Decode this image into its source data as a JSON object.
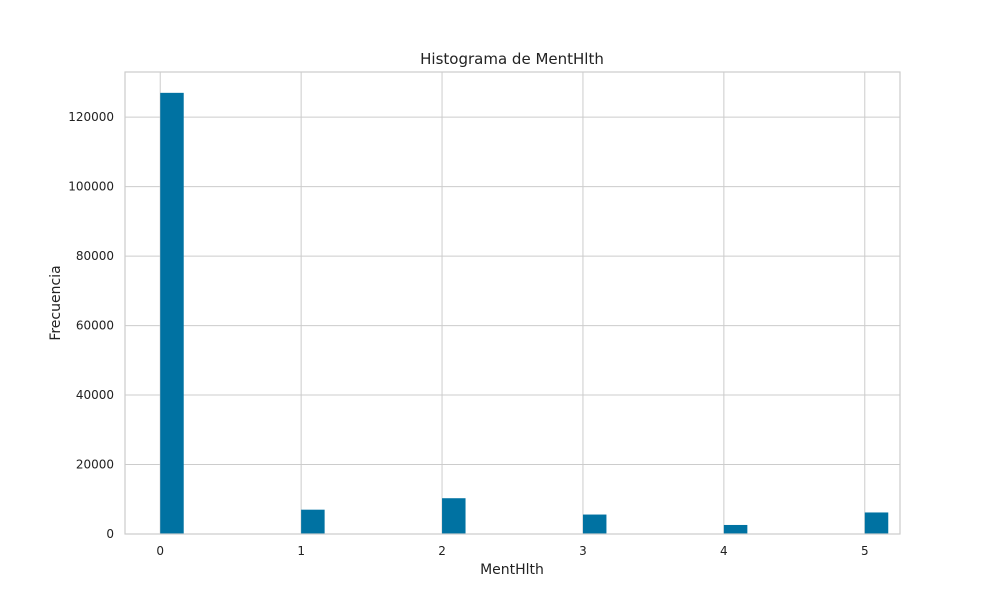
{
  "chart_data": {
    "type": "bar",
    "title": "Histograma de MentHlth",
    "xlabel": "MentHlth",
    "ylabel": "Frecuencia",
    "x_ticks": [
      "0",
      "1",
      "2",
      "3",
      "4",
      "5"
    ],
    "y_ticks": [
      "0",
      "20000",
      "40000",
      "60000",
      "80000",
      "100000",
      "120000"
    ],
    "xlim": [
      -0.25,
      5.25
    ],
    "ylim": [
      0,
      133000
    ],
    "bin_width": 0.1667,
    "bins": [
      {
        "x": 0,
        "value": 127000
      },
      {
        "x": 1,
        "value": 7000
      },
      {
        "x": 2,
        "value": 10300
      },
      {
        "x": 3,
        "value": 5600
      },
      {
        "x": 4,
        "value": 2600
      },
      {
        "x": 5,
        "value": 6200
      }
    ],
    "bar_color": "#0072a2",
    "grid": true
  }
}
